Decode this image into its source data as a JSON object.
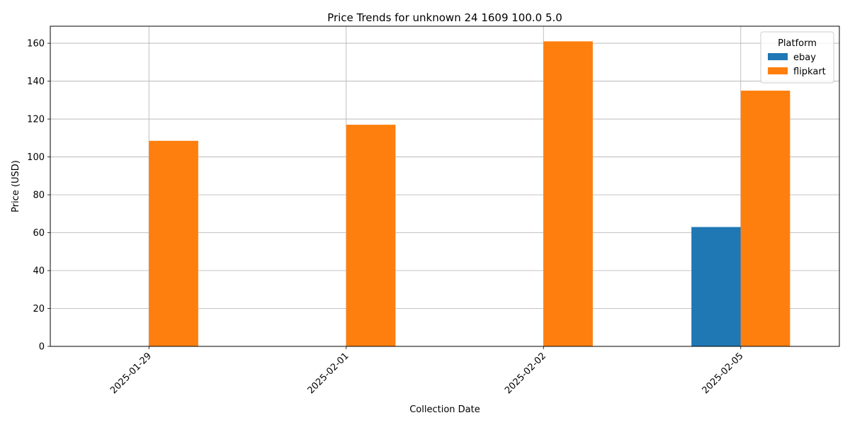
{
  "chart_data": {
    "type": "bar",
    "title": "Price Trends for unknown 24 1609 100.0 5.0",
    "xlabel": "Collection Date",
    "ylabel": "Price (USD)",
    "categories": [
      "2025-01-29",
      "2025-02-01",
      "2025-02-02",
      "2025-02-05"
    ],
    "series": [
      {
        "name": "ebay",
        "values": [
          null,
          null,
          null,
          63
        ],
        "color": "#1f77b4"
      },
      {
        "name": "flipkart",
        "values": [
          108.5,
          117,
          161,
          135
        ],
        "color": "#ff7f0e"
      }
    ],
    "ylim": [
      0,
      169
    ],
    "yticks": [
      0,
      20,
      40,
      60,
      80,
      100,
      120,
      140,
      160
    ],
    "grid": true,
    "legend": {
      "title": "Platform",
      "placement": "top-right"
    }
  }
}
